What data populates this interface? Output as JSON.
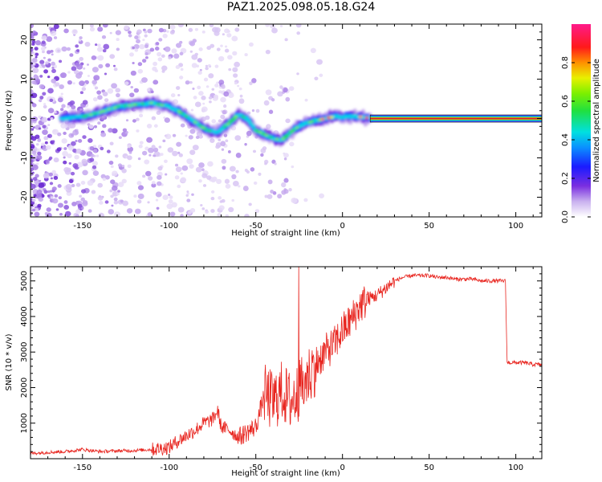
{
  "title": "PAZ1.2025.098.05.18.G24",
  "colors": {
    "snr_line": "#e8251f",
    "band": "#d01c3e",
    "axis": "#000000"
  },
  "chart_data": [
    {
      "type": "heatmap",
      "xlabel": "Height of straight line (km)",
      "ylabel": "Frequency (Hz)",
      "xlim": [
        -180,
        115
      ],
      "ylim": [
        -25,
        24
      ],
      "xticks": [
        -150,
        -100,
        -50,
        0,
        50,
        100
      ],
      "xtick_labels": [
        "-150",
        "-100",
        "-50",
        "0",
        "50",
        "100"
      ],
      "yticks": [
        -20,
        -10,
        0,
        10,
        20
      ],
      "ytick_labels": [
        "-20",
        "-10",
        "0",
        "10",
        "20"
      ],
      "colorbar": {
        "label": "Normalized spectral amplitude",
        "range": [
          0,
          1
        ],
        "ticks": [
          0.0,
          0.2,
          0.4,
          0.6,
          0.8
        ],
        "tick_labels": [
          "0.0",
          "0.2",
          "0.4",
          "0.6",
          "0.8"
        ],
        "colormap": "rainbow (violet-blue-cyan-green-yellow-orange-red-magenta)"
      },
      "ridge": [
        {
          "x": -162,
          "y": 0
        },
        {
          "x": -150,
          "y": 0.5
        },
        {
          "x": -140,
          "y": 1.5
        },
        {
          "x": -130,
          "y": 3
        },
        {
          "x": -120,
          "y": 3.5
        },
        {
          "x": -110,
          "y": 4
        },
        {
          "x": -100,
          "y": 3
        },
        {
          "x": -95,
          "y": 2
        },
        {
          "x": -90,
          "y": 0.5
        },
        {
          "x": -85,
          "y": -1
        },
        {
          "x": -78,
          "y": -3
        },
        {
          "x": -72,
          "y": -3.5
        },
        {
          "x": -65,
          "y": -1
        },
        {
          "x": -60,
          "y": 1
        },
        {
          "x": -55,
          "y": 0
        },
        {
          "x": -50,
          "y": -3
        },
        {
          "x": -45,
          "y": -4
        },
        {
          "x": -40,
          "y": -5
        },
        {
          "x": -35,
          "y": -5.5
        },
        {
          "x": -30,
          "y": -3.5
        },
        {
          "x": -25,
          "y": -2
        },
        {
          "x": -20,
          "y": -1
        },
        {
          "x": -15,
          "y": -0.5
        },
        {
          "x": -10,
          "y": 0
        },
        {
          "x": -5,
          "y": 0.5
        },
        {
          "x": 0,
          "y": 0.5
        },
        {
          "x": 5,
          "y": 0.5
        },
        {
          "x": 10,
          "y": 0.5
        },
        {
          "x": 16,
          "y": 0
        }
      ],
      "carrier_band": {
        "x_start": 16,
        "x_end": 115,
        "y": 0,
        "amplitude": 1.0
      }
    },
    {
      "type": "line",
      "xlabel": "Height of straight line (km)",
      "ylabel": "SNR (10 * v/v)",
      "xlim": [
        -180,
        115
      ],
      "ylim": [
        0,
        5400
      ],
      "xticks": [
        -150,
        -100,
        -50,
        0,
        50,
        100
      ],
      "xtick_labels": [
        "-150",
        "-100",
        "-50",
        "0",
        "50",
        "100"
      ],
      "yticks": [
        1000,
        2000,
        3000,
        4000,
        5000
      ],
      "ytick_labels": [
        "1000",
        "2000",
        "3000",
        "4000",
        "5000"
      ],
      "series": [
        {
          "x": [
            -180,
            -170,
            -160,
            -150,
            -140,
            -130,
            -120,
            -110,
            -100,
            -95,
            -90,
            -85,
            -80,
            -75,
            -72,
            -70,
            -65,
            -60,
            -55,
            -50,
            -45,
            -40,
            -35,
            -30,
            -25,
            -20,
            -15,
            -10,
            -5,
            0,
            5,
            10,
            15,
            20,
            25,
            30,
            35,
            40,
            45,
            50,
            55,
            60,
            65,
            70,
            75,
            80,
            85,
            90,
            94,
            95,
            100,
            105,
            110,
            115
          ],
          "y": [
            150,
            180,
            200,
            260,
            200,
            220,
            230,
            260,
            320,
            500,
            650,
            800,
            1000,
            1100,
            1350,
            900,
            800,
            600,
            750,
            900,
            1800,
            1600,
            1900,
            1600,
            1900,
            2300,
            2700,
            3000,
            3200,
            3600,
            3900,
            4300,
            4500,
            4600,
            4800,
            5000,
            5100,
            5150,
            5150,
            5150,
            5100,
            5100,
            5050,
            5050,
            5050,
            5000,
            5000,
            5000,
            5000,
            2700,
            2700,
            2700,
            2650,
            2650
          ]
        }
      ]
    }
  ]
}
